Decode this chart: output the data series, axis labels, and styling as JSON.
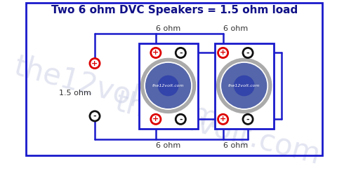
{
  "title": "Two 6 ohm DVC Speakers = 1.5 ohm load",
  "title_fontsize": 11,
  "bg_color": "#ffffff",
  "border_color": "#1a1acc",
  "wire_color": "#1a1acc",
  "wire_lw": 1.8,
  "red_circle_color": "#dd0000",
  "black_circle_color": "#111111",
  "speaker_box_color": "#1a1acc",
  "speaker_cone_silver": "#aaaaaa",
  "speaker_cone_mid": "#5566aa",
  "speaker_cone_inner": "#3344aa",
  "watermark_color": "#d0d4e8",
  "watermark_text": "the12volt.com",
  "label_1p5": "1.5 ohm",
  "label_6ohm": "6 ohm",
  "plus_symbol": "+",
  "minus_symbol": "-",
  "terminal_r": 8,
  "title_color": "#111188"
}
